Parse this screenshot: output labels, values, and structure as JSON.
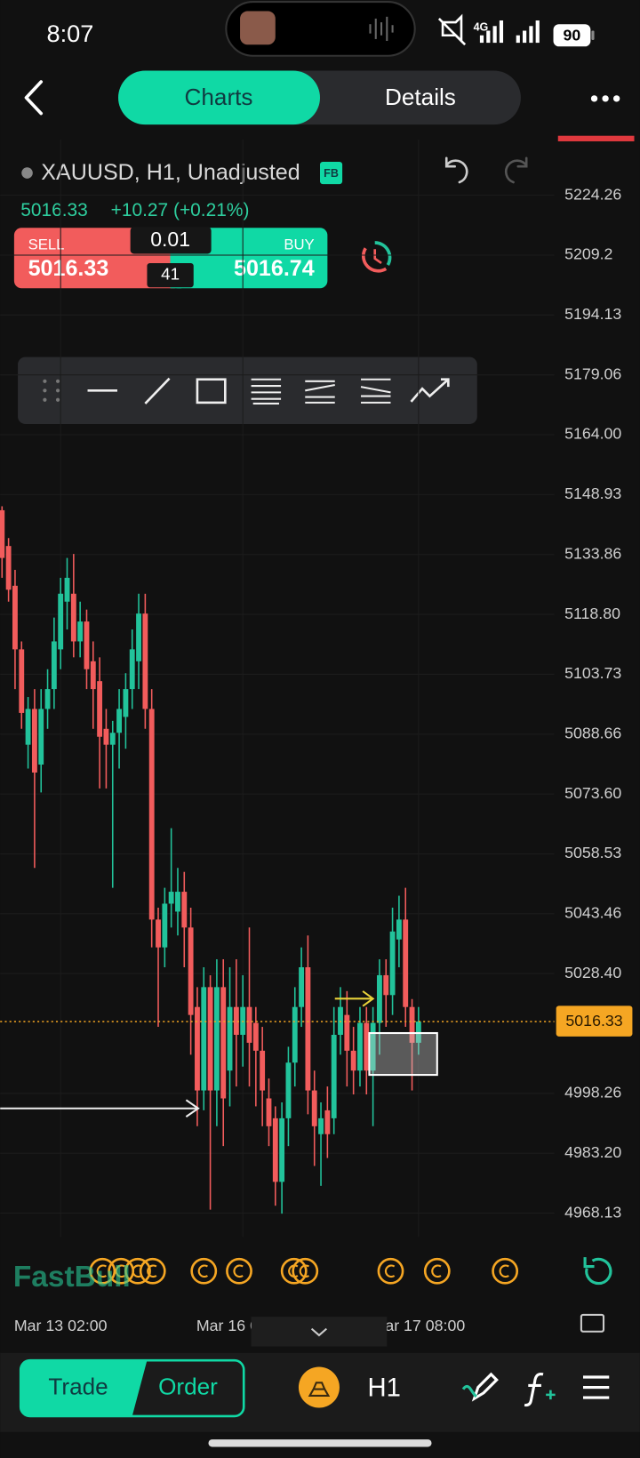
{
  "status_bar": {
    "time": "8:07",
    "network": "4G",
    "battery": "90"
  },
  "tabs": [
    "Charts",
    "Details"
  ],
  "symbol": {
    "title": "XAUUSD, H1, Unadjusted",
    "badge": "FB",
    "last": "5016.33",
    "change": "+10.27 (+0.21%)"
  },
  "trade_panel": {
    "sell_label": "SELL",
    "sell_price": "5016.33",
    "lot": "0.01",
    "spread": "41",
    "buy_label": "BUY",
    "buy_price": "5016.74"
  },
  "watermark": "FastBull",
  "bottom_bar": {
    "trade": "Trade",
    "order": "Order",
    "timeframe": "H1"
  },
  "chart_data": {
    "type": "candlestick",
    "up_color": "#22c39b",
    "down_color": "#f25c5c",
    "grid": true,
    "last_price": 5016.33,
    "last_price_color": "#f5a623",
    "ylim": [
      4962.2,
      5238.3
    ],
    "yticks": [
      5224.26,
      5209.2,
      5194.13,
      5179.06,
      {
        "value": 5164,
        "label": "5164.00"
      },
      5148.93,
      5133.86,
      {
        "value": 5118.8,
        "label": "5118.80"
      },
      5103.73,
      5088.66,
      {
        "value": 5073.6,
        "label": "5073.60"
      },
      5058.53,
      5043.46,
      {
        "value": 5028.4,
        "label": "5028.40"
      },
      4998.26,
      {
        "value": 4983.2,
        "label": "4983.20"
      },
      4968.13
    ],
    "categories": [
      null,
      null,
      null,
      null,
      null,
      null,
      null,
      null,
      null,
      "Mar 13 02:00",
      null,
      null,
      null,
      null,
      null,
      null,
      null,
      null,
      null,
      null,
      null,
      null,
      null,
      null,
      null,
      null,
      null,
      null,
      null,
      null,
      null,
      null,
      null,
      null,
      null,
      null,
      null,
      "Mar 16 05:00",
      null,
      null,
      null,
      null,
      null,
      null,
      null,
      null,
      null,
      null,
      null,
      null,
      null,
      null,
      null,
      null,
      null,
      null,
      null,
      null,
      null,
      null,
      null,
      null,
      null,
      null,
      "Mar 17 08:00"
    ],
    "open": [
      5145,
      5136,
      5126,
      5110,
      5086,
      5095,
      5081,
      5095,
      5100,
      5110,
      5122,
      5124,
      5112,
      5117,
      5107,
      5102,
      5090,
      5086,
      5089,
      5093,
      5100,
      5107,
      5119,
      5095,
      5042,
      5035,
      5046,
      5044,
      5049,
      5040,
      5020,
      4999,
      5025,
      4999,
      5025,
      5004,
      5020,
      5013,
      5020,
      5016,
      5009,
      4997,
      4992,
      4976,
      4992,
      5006,
      5020,
      5030,
      4999,
      4988,
      4994,
      4992,
      5013,
      5018,
      5009,
      5004,
      5016,
      5004,
      5016,
      5028,
      5023,
      5037,
      5042,
      5020,
      5011
    ],
    "high": [
      5146,
      5138,
      5130,
      5112,
      5098,
      5100,
      5100,
      5105,
      5118,
      5128,
      5133,
      5134,
      5122,
      5120,
      5112,
      5108,
      5095,
      5092,
      5100,
      5104,
      5115,
      5124,
      5124,
      5100,
      5045,
      5050,
      5065,
      5055,
      5054,
      5045,
      5025,
      5030,
      5028,
      5032,
      5032,
      5030,
      5032,
      5028,
      5040,
      5020,
      5015,
      5002,
      4995,
      4996,
      5010,
      5025,
      5035,
      5038,
      5004,
      4996,
      5000,
      5020,
      5025,
      5024,
      5015,
      5020,
      5020,
      5020,
      5032,
      5032,
      5045,
      5048,
      5050,
      5022,
      5020
    ],
    "low": [
      5128,
      5122,
      5100,
      5090,
      5080,
      5055,
      5074,
      5090,
      5095,
      5105,
      5115,
      5108,
      5108,
      5100,
      5090,
      5075,
      5075,
      5050,
      5080,
      5085,
      5095,
      5100,
      5090,
      5035,
      5015,
      5030,
      5040,
      5038,
      5030,
      5008,
      4990,
      4994,
      4969,
      4990,
      4985,
      4995,
      5000,
      5005,
      5000,
      4995,
      4990,
      4985,
      4970,
      4968,
      4985,
      5000,
      5015,
      4993,
      4980,
      4975,
      4982,
      4988,
      5008,
      5000,
      4998,
      5000,
      4998,
      4990,
      5008,
      5015,
      5018,
      5030,
      5015,
      4999,
      5008
    ],
    "close": [
      5133,
      5125,
      5110,
      5094,
      5095,
      5079,
      5095,
      5100,
      5112,
      5124,
      5128,
      5112,
      5117,
      5105,
      5100,
      5088,
      5086,
      5089,
      5095,
      5100,
      5110,
      5119,
      5095,
      5042,
      5035,
      5046,
      5049,
      5049,
      5040,
      5018,
      4999,
      5025,
      4999,
      5025,
      4997,
      5020,
      5013,
      5020,
      5011,
      5009,
      4999,
      4990,
      4976,
      4992,
      5006,
      5020,
      5030,
      4999,
      4990,
      4992,
      4988,
      5013,
      5020,
      5009,
      5004,
      5016,
      5004,
      5016,
      5028,
      5023,
      5039,
      5042,
      5020,
      5011,
      5016.33
    ]
  }
}
